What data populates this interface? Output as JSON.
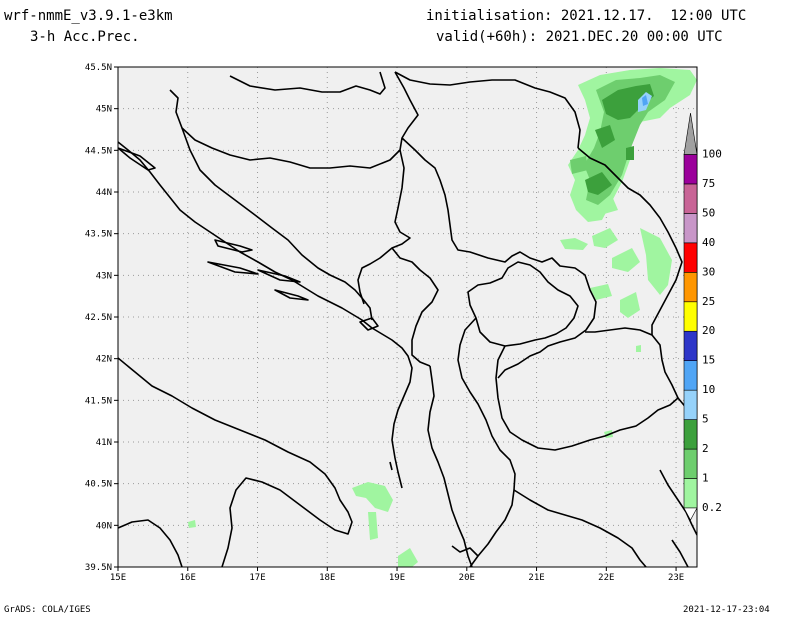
{
  "header": {
    "model": "wrf-nmmE_v3.9.1-e3km",
    "field": "3-h Acc.Prec.",
    "init": "initialisation: 2021.12.17.  12:00 UTC",
    "valid": "valid(+60h): 2021.DEC.20 00:00 UTC"
  },
  "footer": {
    "credit": "GrADS: COLA/IGES",
    "timestamp": "2021-12-17-23:04"
  },
  "map": {
    "lon_min": 15,
    "lon_max": 23.3,
    "lat_min": 39.5,
    "lat_max": 45.5,
    "lat_ticks": [
      {
        "v": 39.5,
        "label": "39.5N"
      },
      {
        "v": 40,
        "label": "40N"
      },
      {
        "v": 40.5,
        "label": "40.5N"
      },
      {
        "v": 41,
        "label": "41N"
      },
      {
        "v": 41.5,
        "label": "41.5N"
      },
      {
        "v": 42,
        "label": "42N"
      },
      {
        "v": 42.5,
        "label": "42.5N"
      },
      {
        "v": 43,
        "label": "43N"
      },
      {
        "v": 43.5,
        "label": "43.5N"
      },
      {
        "v": 44,
        "label": "44N"
      },
      {
        "v": 44.5,
        "label": "44.5N"
      },
      {
        "v": 45,
        "label": "45N"
      },
      {
        "v": 45.5,
        "label": "45.5N"
      }
    ],
    "lon_ticks": [
      {
        "v": 15,
        "label": "15E"
      },
      {
        "v": 16,
        "label": "16E"
      },
      {
        "v": 17,
        "label": "17E"
      },
      {
        "v": 18,
        "label": "18E"
      },
      {
        "v": 19,
        "label": "19E"
      },
      {
        "v": 20,
        "label": "20E"
      },
      {
        "v": 21,
        "label": "21E"
      },
      {
        "v": 22,
        "label": "22E"
      },
      {
        "v": 23,
        "label": "23E"
      }
    ],
    "background_color": "#f0f0f0",
    "line_color": "#000000"
  },
  "colorbar": {
    "levels": [
      {
        "label": "0.2",
        "color": "#a0f5a0"
      },
      {
        "label": "1",
        "color": "#6ece6e"
      },
      {
        "label": "2",
        "color": "#3ca03c"
      },
      {
        "label": "5",
        "color": "#96d2fa"
      },
      {
        "label": "10",
        "color": "#50a5f5"
      },
      {
        "label": "15",
        "color": "#2d36c8"
      },
      {
        "label": "20",
        "color": "#ffff00"
      },
      {
        "label": "25",
        "color": "#ff9600"
      },
      {
        "label": "30",
        "color": "#ff0000"
      },
      {
        "label": "40",
        "color": "#c896c8"
      },
      {
        "label": "50",
        "color": "#c86496"
      },
      {
        "label": "75",
        "color": "#9b009b"
      },
      {
        "label": "100",
        "color": "#a0a0a0"
      }
    ]
  }
}
